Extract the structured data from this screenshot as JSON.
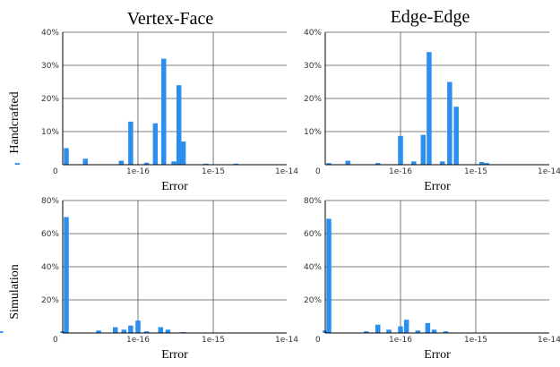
{
  "column_titles": [
    "Vertex-Face",
    "Edge-Edge"
  ],
  "row_labels": [
    "Handcrafted",
    "Simulation"
  ],
  "chart_data": [
    {
      "type": "bar",
      "title": "Vertex-Face",
      "row": "Handcrafted",
      "xlabel": "Error",
      "x_scale": "log",
      "x_ticks": [
        "0",
        "1e-16",
        "1e-15",
        "1e-14"
      ],
      "y_ticks": [
        "10%",
        "20%",
        "30%",
        "40%"
      ],
      "ylim": [
        0,
        40
      ],
      "bar_color": "#2b8ff0",
      "bars": [
        {
          "x": "0",
          "value": 5
        },
        {
          "x": "2.5e-18",
          "value": 0.5
        },
        {
          "x": "2e-17",
          "value": 1.8
        },
        {
          "x": "6e-17",
          "value": 1.2
        },
        {
          "x": "8e-17",
          "value": 13
        },
        {
          "x": "1.3e-16",
          "value": 0.6
        },
        {
          "x": "1.7e-16",
          "value": 12.5
        },
        {
          "x": "2.2e-16",
          "value": 32
        },
        {
          "x": "3e-16",
          "value": 1
        },
        {
          "x": "3.5e-16",
          "value": 24
        },
        {
          "x": "4e-16",
          "value": 7
        },
        {
          "x": "8e-16",
          "value": 0.3
        },
        {
          "x": "2e-15",
          "value": 0.3
        }
      ]
    },
    {
      "type": "bar",
      "title": "Edge-Edge",
      "row": "Handcrafted",
      "xlabel": "Error",
      "x_scale": "log",
      "x_ticks": [
        "0",
        "1e-16",
        "1e-15",
        "1e-14"
      ],
      "y_ticks": [
        "10%",
        "20%",
        "30%",
        "40%"
      ],
      "ylim": [
        0,
        40
      ],
      "bar_color": "#2b8ff0",
      "bars": [
        {
          "x": "0",
          "value": 0.5
        },
        {
          "x": "2e-17",
          "value": 1.2
        },
        {
          "x": "5e-17",
          "value": 0.5
        },
        {
          "x": "1e-16",
          "value": 8.7
        },
        {
          "x": "1.5e-16",
          "value": 1
        },
        {
          "x": "2e-16",
          "value": 9
        },
        {
          "x": "2.4e-16",
          "value": 34
        },
        {
          "x": "3.6e-16",
          "value": 1
        },
        {
          "x": "4.5e-16",
          "value": 25
        },
        {
          "x": "5.5e-16",
          "value": 17.5
        },
        {
          "x": "1.2e-15",
          "value": 0.8
        },
        {
          "x": "1.4e-15",
          "value": 0.5
        }
      ]
    },
    {
      "type": "bar",
      "title": "Vertex-Face",
      "row": "Simulation",
      "xlabel": "Error",
      "x_scale": "log",
      "x_ticks": [
        "0",
        "1e-16",
        "1e-15",
        "1e-14"
      ],
      "y_ticks": [
        "20%",
        "40%",
        "60%",
        "80%"
      ],
      "ylim": [
        0,
        80
      ],
      "bar_color": "#2b8ff0",
      "bars": [
        {
          "x": "0",
          "value": 70
        },
        {
          "x": "1.5e-18",
          "value": 1
        },
        {
          "x": "1e-17",
          "value": 1
        },
        {
          "x": "3e-17",
          "value": 1.5
        },
        {
          "x": "5e-17",
          "value": 3.5
        },
        {
          "x": "6.5e-17",
          "value": 2
        },
        {
          "x": "8e-17",
          "value": 4.5
        },
        {
          "x": "1e-16",
          "value": 7.5
        },
        {
          "x": "1.3e-16",
          "value": 1
        },
        {
          "x": "2e-16",
          "value": 3.5
        },
        {
          "x": "2.5e-16",
          "value": 2
        },
        {
          "x": "4e-16",
          "value": 0.5
        }
      ]
    },
    {
      "type": "bar",
      "title": "Edge-Edge",
      "row": "Simulation",
      "xlabel": "Error",
      "x_scale": "log",
      "x_ticks": [
        "0",
        "1e-16",
        "1e-15",
        "1e-14"
      ],
      "y_ticks": [
        "20%",
        "40%",
        "60%",
        "80%"
      ],
      "ylim": [
        0,
        80
      ],
      "bar_color": "#2b8ff0",
      "bars": [
        {
          "x": "0",
          "value": 69
        },
        {
          "x": "1e-17",
          "value": 1.5
        },
        {
          "x": "3.5e-17",
          "value": 1
        },
        {
          "x": "5e-17",
          "value": 5
        },
        {
          "x": "7e-17",
          "value": 2
        },
        {
          "x": "1e-16",
          "value": 4
        },
        {
          "x": "1.2e-16",
          "value": 8
        },
        {
          "x": "1.7e-16",
          "value": 1.5
        },
        {
          "x": "2.3e-16",
          "value": 6
        },
        {
          "x": "2.8e-16",
          "value": 2
        },
        {
          "x": "4e-16",
          "value": 1
        }
      ]
    }
  ]
}
